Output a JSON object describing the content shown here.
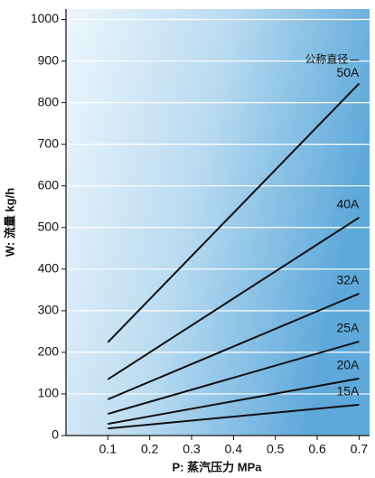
{
  "chart_data": {
    "type": "line",
    "x_label": "P: 蒸汽压力 MPa",
    "y_label": "W: 流量 kg/h",
    "legend_title": "公称直径",
    "x": [
      0.1,
      0.7
    ],
    "series": [
      {
        "name": "50A",
        "color": "#111111",
        "values": [
          224,
          846
        ]
      },
      {
        "name": "40A",
        "color": "#111111",
        "values": [
          135,
          524
        ]
      },
      {
        "name": "32A",
        "color": "#111111",
        "values": [
          87,
          341
        ]
      },
      {
        "name": "25A",
        "color": "#111111",
        "values": [
          52,
          226
        ]
      },
      {
        "name": "20A",
        "color": "#111111",
        "values": [
          28,
          137
        ]
      },
      {
        "name": "15A",
        "color": "#111111",
        "values": [
          17,
          74
        ]
      }
    ],
    "xlim": [
      0,
      0.725
    ],
    "xticks": [
      0.1,
      0.2,
      0.3,
      0.4,
      0.5,
      0.6,
      0.7
    ],
    "ylim": [
      0,
      1025
    ],
    "yticks": [
      0,
      100,
      200,
      300,
      400,
      500,
      600,
      700,
      800,
      900,
      1000
    ],
    "grid": true
  }
}
